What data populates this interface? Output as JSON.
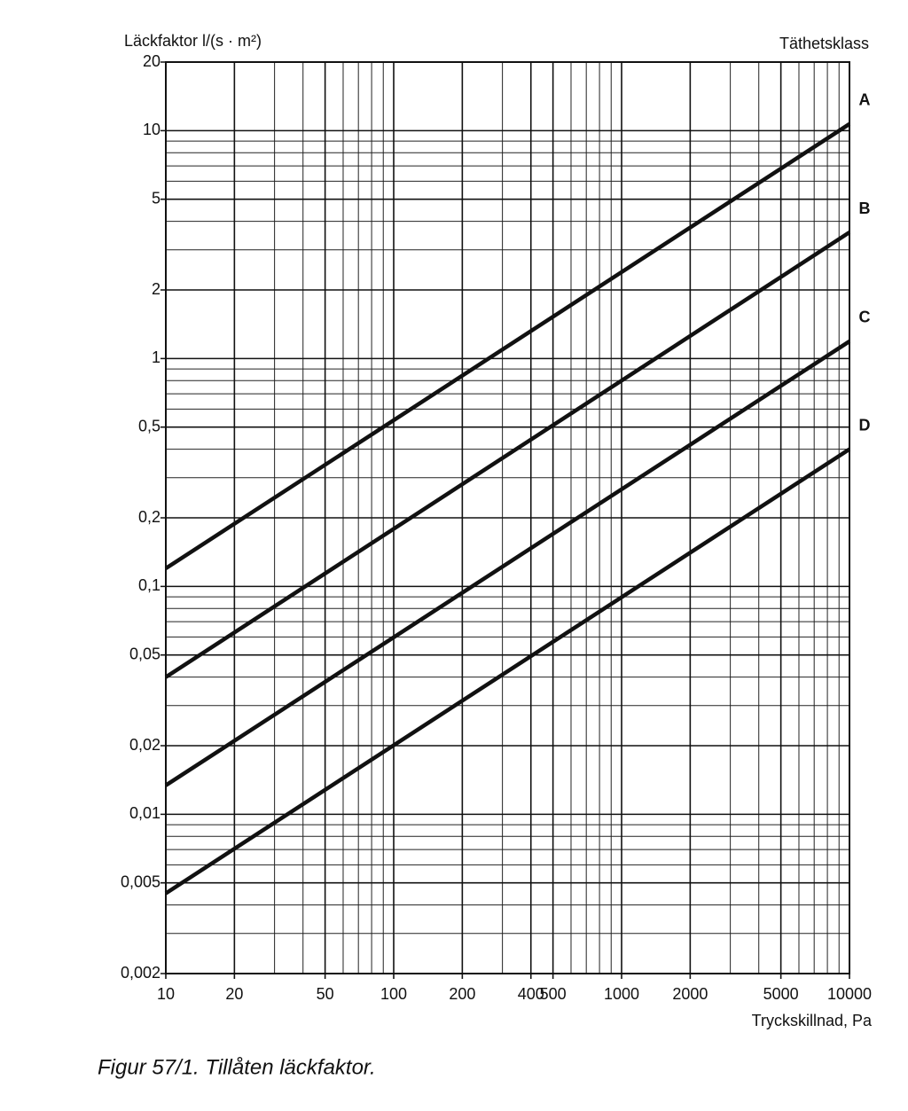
{
  "chart_data": {
    "type": "line",
    "title": "Läckfaktor l/(s · m²)",
    "legend_title": "Täthetsklass",
    "x_label": "Tryckskillnad, Pa",
    "caption": "Figur 57/1. Tillåten läckfaktor.",
    "x_log": true,
    "y_log": true,
    "grid": true,
    "x": [
      10,
      10000
    ],
    "series": [
      {
        "name": "A",
        "color": "#111111",
        "values": [
          0.12,
          10.7
        ]
      },
      {
        "name": "B",
        "color": "#111111",
        "values": [
          0.04,
          3.58
        ]
      },
      {
        "name": "C",
        "color": "#111111",
        "values": [
          0.0134,
          1.19
        ]
      },
      {
        "name": "D",
        "color": "#111111",
        "values": [
          0.0045,
          0.4
        ]
      }
    ],
    "xlim": [
      10,
      10000
    ],
    "ylim": [
      0.002,
      20
    ],
    "xticks": [
      10,
      20,
      50,
      100,
      200,
      400,
      500,
      1000,
      2000,
      5000,
      10000
    ],
    "yticks": [
      20,
      10,
      5,
      2,
      1,
      {
        "value": 0.5,
        "label": "0,5"
      },
      {
        "value": 0.2,
        "label": "0,2"
      },
      {
        "value": 0.1,
        "label": "0,1"
      },
      {
        "value": 0.05,
        "label": "0,05"
      },
      {
        "value": 0.02,
        "label": "0,02"
      },
      {
        "value": 0.01,
        "label": "0,01"
      },
      {
        "value": 0.005,
        "label": "0,005"
      },
      {
        "value": 0.002,
        "label": "0,002"
      }
    ],
    "xminor_ticks": [
      30,
      40,
      60,
      70,
      80,
      90,
      300,
      600,
      700,
      800,
      900,
      3000,
      4000,
      6000,
      7000,
      8000,
      9000
    ],
    "yminor_ticks": [
      0.003,
      0.004,
      0.006,
      0.007,
      0.008,
      0.009,
      0.03,
      0.04,
      0.06,
      0.07,
      0.08,
      0.09,
      0.3,
      0.4,
      0.6,
      0.7,
      0.8,
      0.9,
      3,
      4,
      6,
      7,
      8,
      9
    ]
  }
}
